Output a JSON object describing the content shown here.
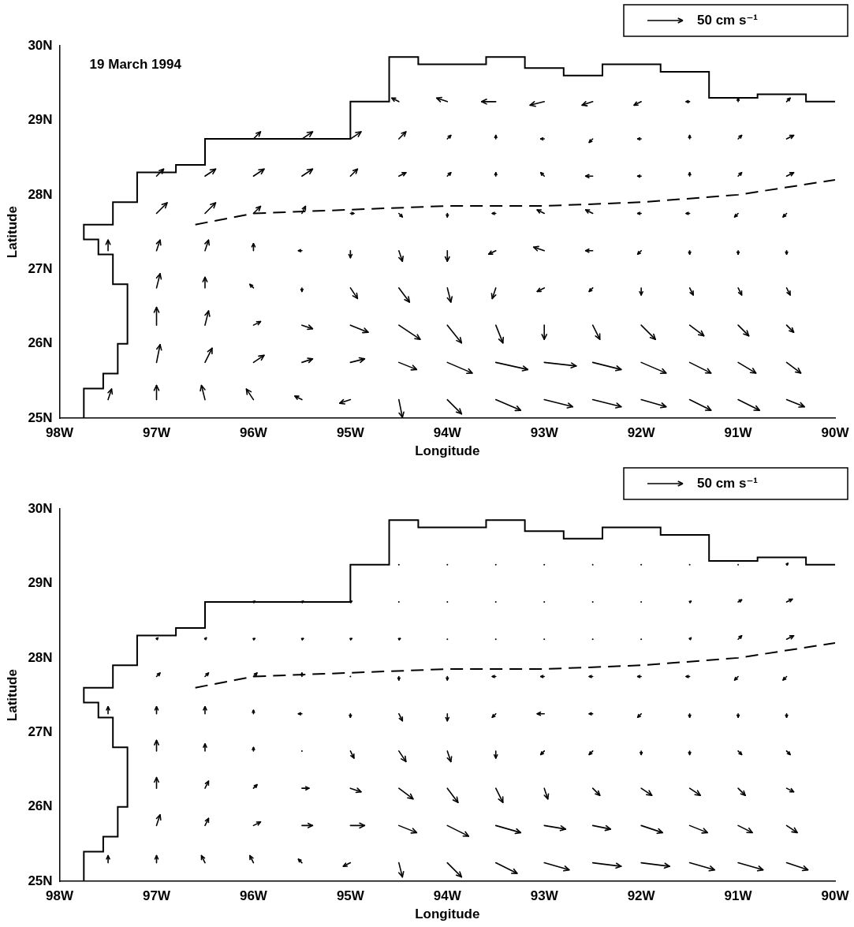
{
  "chart_data": [
    {
      "type": "quiver",
      "title": "19 March 1994",
      "x_label": "Longitude",
      "y_label": "Latitude",
      "xlim": [
        -98,
        -90
      ],
      "ylim": [
        25,
        30
      ],
      "xticks": [
        {
          "value": -98,
          "label": "98W"
        },
        {
          "value": -97,
          "label": "97W"
        },
        {
          "value": -96,
          "label": "96W"
        },
        {
          "value": -95,
          "label": "95W"
        },
        {
          "value": -94,
          "label": "94W"
        },
        {
          "value": -93,
          "label": "93W"
        },
        {
          "value": -92,
          "label": "92W"
        },
        {
          "value": -91,
          "label": "91W"
        },
        {
          "value": -90,
          "label": "90W"
        }
      ],
      "yticks": [
        {
          "value": 25,
          "label": "25N"
        },
        {
          "value": 26,
          "label": "26N"
        },
        {
          "value": 27,
          "label": "27N"
        },
        {
          "value": 28,
          "label": "28N"
        },
        {
          "value": 29,
          "label": "29N"
        },
        {
          "value": 30,
          "label": "30N"
        }
      ],
      "grid": false,
      "color": "#000000",
      "scale_arrow": {
        "value": 50,
        "label": "50 cm s⁻¹"
      },
      "series": [
        {
          "type": "line",
          "line_style": "solid",
          "color": "#000000",
          "x": [
            -97.75,
            -97.75,
            -97.55,
            -97.55,
            -97.4,
            -97.4,
            -97.3,
            -97.3,
            -97.45,
            -97.45,
            -97.6,
            -97.6,
            -97.75,
            -97.75,
            -97.45,
            -97.45,
            -97.2,
            -97.2,
            -96.8,
            -96.8,
            -96.5,
            -96.5,
            -95.0,
            -95.0,
            -94.6,
            -94.6,
            -94.3,
            -94.3,
            -93.6,
            -93.6,
            -93.2,
            -93.2,
            -92.8,
            -92.8,
            -92.4,
            -92.4,
            -91.8,
            -91.8,
            -91.3,
            -91.3,
            -90.8,
            -90.8,
            -90.3,
            -90.3,
            -90.0
          ],
          "values": [
            25.0,
            25.4,
            25.4,
            25.6,
            25.6,
            26.0,
            26.0,
            26.8,
            26.8,
            27.2,
            27.2,
            27.4,
            27.4,
            27.6,
            27.6,
            27.9,
            27.9,
            28.3,
            28.3,
            28.4,
            28.4,
            28.75,
            28.75,
            29.25,
            29.25,
            29.85,
            29.85,
            29.75,
            29.75,
            29.85,
            29.85,
            29.7,
            29.7,
            29.6,
            29.6,
            29.75,
            29.75,
            29.65,
            29.65,
            29.3,
            29.3,
            29.35,
            29.35,
            29.25,
            29.25
          ]
        },
        {
          "type": "line",
          "line_style": "dashed",
          "color": "#000000",
          "x": [
            -96.6,
            -96.0,
            -95.0,
            -94.0,
            -93.0,
            -92.0,
            -91.0,
            -90.0
          ],
          "values": [
            27.6,
            27.75,
            27.8,
            27.85,
            27.85,
            27.9,
            28.0,
            28.2
          ]
        }
      ],
      "vectors": {
        "x": [
          -97.5,
          -97.0,
          -96.5,
          -96.0,
          -95.5,
          -95.0,
          -94.5,
          -94.0,
          -93.5,
          -93.0,
          -92.5,
          -92.0,
          -91.5,
          -91.0,
          -90.5
        ],
        "y": [
          25.25,
          25.75,
          26.25,
          26.75,
          27.25,
          27.75,
          28.25,
          28.75,
          29.25
        ],
        "u": [
          [
            5,
            0,
            -5,
            -10,
            -10,
            -15,
            5,
            20,
            35,
            40,
            40,
            35,
            30,
            30,
            25
          ],
          [
            null,
            5,
            10,
            15,
            15,
            20,
            25,
            35,
            45,
            45,
            40,
            35,
            30,
            25,
            20
          ],
          [
            null,
            0,
            5,
            10,
            15,
            25,
            30,
            20,
            10,
            0,
            10,
            20,
            20,
            15,
            10
          ],
          [
            null,
            5,
            0,
            -5,
            0,
            10,
            15,
            5,
            -5,
            -10,
            -5,
            0,
            5,
            5,
            5
          ],
          [
            0,
            5,
            5,
            0,
            -5,
            0,
            5,
            0,
            -10,
            -15,
            -10,
            -5,
            0,
            0,
            0
          ],
          [
            null,
            15,
            15,
            10,
            5,
            5,
            5,
            0,
            -5,
            -10,
            -10,
            -5,
            -5,
            -5,
            -5
          ],
          [
            null,
            10,
            15,
            15,
            15,
            10,
            10,
            5,
            0,
            -5,
            -10,
            -5,
            0,
            5,
            10
          ],
          [
            null,
            null,
            null,
            10,
            15,
            15,
            10,
            5,
            0,
            -5,
            -5,
            -5,
            0,
            5,
            10
          ],
          [
            null,
            null,
            null,
            null,
            null,
            null,
            -10,
            -15,
            -20,
            -20,
            -15,
            -10,
            -5,
            0,
            5
          ]
        ],
        "v": [
          [
            15,
            20,
            20,
            15,
            5,
            -5,
            -25,
            -20,
            -15,
            -10,
            -10,
            -10,
            -15,
            -15,
            -10
          ],
          [
            null,
            25,
            20,
            10,
            5,
            5,
            -10,
            -15,
            -10,
            -5,
            -10,
            -15,
            -15,
            -15,
            -15
          ],
          [
            null,
            25,
            20,
            5,
            -5,
            -10,
            -20,
            -25,
            -25,
            -20,
            -20,
            -20,
            -15,
            -15,
            -10
          ],
          [
            null,
            20,
            15,
            5,
            -5,
            -15,
            -20,
            -20,
            -15,
            -5,
            -5,
            -10,
            -10,
            -10,
            -10
          ],
          [
            15,
            15,
            15,
            10,
            0,
            -10,
            -15,
            -15,
            -5,
            5,
            0,
            -5,
            -5,
            -5,
            -5
          ],
          [
            null,
            15,
            15,
            10,
            10,
            0,
            -5,
            -5,
            0,
            5,
            5,
            0,
            0,
            -5,
            -5
          ],
          [
            null,
            10,
            10,
            10,
            10,
            10,
            5,
            5,
            5,
            5,
            0,
            0,
            5,
            5,
            5
          ],
          [
            null,
            null,
            null,
            10,
            10,
            10,
            10,
            5,
            5,
            0,
            -5,
            0,
            5,
            5,
            5
          ],
          [
            null,
            null,
            null,
            null,
            null,
            null,
            5,
            5,
            0,
            -5,
            -5,
            -5,
            0,
            5,
            5
          ]
        ]
      }
    },
    {
      "type": "quiver",
      "x_label": "Longitude",
      "y_label": "Latitude",
      "xlim": [
        -98,
        -90
      ],
      "ylim": [
        25,
        30
      ],
      "xticks": [
        {
          "value": -98,
          "label": "98W"
        },
        {
          "value": -97,
          "label": "97W"
        },
        {
          "value": -96,
          "label": "96W"
        },
        {
          "value": -95,
          "label": "95W"
        },
        {
          "value": -94,
          "label": "94W"
        },
        {
          "value": -93,
          "label": "93W"
        },
        {
          "value": -92,
          "label": "92W"
        },
        {
          "value": -91,
          "label": "91W"
        },
        {
          "value": -90,
          "label": "90W"
        }
      ],
      "yticks": [
        {
          "value": 25,
          "label": "25N"
        },
        {
          "value": 26,
          "label": "26N"
        },
        {
          "value": 27,
          "label": "27N"
        },
        {
          "value": 28,
          "label": "28N"
        },
        {
          "value": 29,
          "label": "29N"
        },
        {
          "value": 30,
          "label": "30N"
        }
      ],
      "grid": false,
      "color": "#000000",
      "scale_arrow": {
        "value": 50,
        "label": "50 cm s⁻¹"
      },
      "series": [
        {
          "type": "line",
          "line_style": "solid",
          "color": "#000000",
          "x": [
            -97.75,
            -97.75,
            -97.55,
            -97.55,
            -97.4,
            -97.4,
            -97.3,
            -97.3,
            -97.45,
            -97.45,
            -97.6,
            -97.6,
            -97.75,
            -97.75,
            -97.45,
            -97.45,
            -97.2,
            -97.2,
            -96.8,
            -96.8,
            -96.5,
            -96.5,
            -95.0,
            -95.0,
            -94.6,
            -94.6,
            -94.3,
            -94.3,
            -93.6,
            -93.6,
            -93.2,
            -93.2,
            -92.8,
            -92.8,
            -92.4,
            -92.4,
            -91.8,
            -91.8,
            -91.3,
            -91.3,
            -90.8,
            -90.8,
            -90.3,
            -90.3,
            -90.0
          ],
          "values": [
            25.0,
            25.4,
            25.4,
            25.6,
            25.6,
            26.0,
            26.0,
            26.8,
            26.8,
            27.2,
            27.2,
            27.4,
            27.4,
            27.6,
            27.6,
            27.9,
            27.9,
            28.3,
            28.3,
            28.4,
            28.4,
            28.75,
            28.75,
            29.25,
            29.25,
            29.85,
            29.85,
            29.75,
            29.75,
            29.85,
            29.85,
            29.7,
            29.7,
            29.6,
            29.6,
            29.75,
            29.75,
            29.65,
            29.65,
            29.3,
            29.3,
            29.35,
            29.35,
            29.25,
            29.25
          ]
        },
        {
          "type": "line",
          "line_style": "dashed",
          "color": "#000000",
          "x": [
            -96.6,
            -96.0,
            -95.0,
            -94.0,
            -93.0,
            -92.0,
            -91.0,
            -90.0
          ],
          "values": [
            27.6,
            27.75,
            27.8,
            27.85,
            27.85,
            27.9,
            28.0,
            28.2
          ]
        }
      ],
      "vectors": {
        "x": [
          -97.5,
          -97.0,
          -96.5,
          -96.0,
          -95.5,
          -95.0,
          -94.5,
          -94.0,
          -93.5,
          -93.0,
          -92.5,
          -92.0,
          -91.5,
          -91.0,
          -90.5
        ],
        "y": [
          25.25,
          25.75,
          26.25,
          26.75,
          27.25,
          27.75,
          28.25,
          28.75,
          29.25
        ],
        "u": [
          [
            0,
            0,
            -5,
            -5,
            -5,
            -10,
            5,
            20,
            30,
            35,
            40,
            40,
            35,
            35,
            30
          ],
          [
            null,
            5,
            5,
            10,
            15,
            20,
            25,
            30,
            35,
            30,
            25,
            30,
            25,
            20,
            15
          ],
          [
            null,
            0,
            5,
            5,
            10,
            15,
            20,
            15,
            10,
            5,
            10,
            15,
            15,
            10,
            10
          ],
          [
            null,
            0,
            0,
            0,
            0,
            5,
            10,
            5,
            0,
            -5,
            -5,
            0,
            0,
            5,
            5
          ],
          [
            0,
            0,
            0,
            0,
            -5,
            0,
            5,
            0,
            -5,
            -10,
            -5,
            -5,
            0,
            0,
            0
          ],
          [
            null,
            5,
            5,
            5,
            0,
            0,
            0,
            0,
            -5,
            -5,
            -5,
            -5,
            -5,
            -5,
            -5
          ],
          [
            null,
            2,
            2,
            2,
            2,
            2,
            2,
            1,
            1,
            1,
            0,
            0,
            2,
            5,
            10
          ],
          [
            null,
            null,
            null,
            2,
            2,
            2,
            1,
            1,
            1,
            0,
            0,
            0,
            2,
            5,
            8
          ],
          [
            null,
            null,
            null,
            null,
            null,
            null,
            1,
            1,
            0,
            0,
            0,
            0,
            0,
            1,
            2
          ]
        ],
        "v": [
          [
            10,
            10,
            10,
            10,
            5,
            -5,
            -20,
            -20,
            -15,
            -10,
            -5,
            -5,
            -10,
            -10,
            -10
          ],
          [
            null,
            15,
            10,
            5,
            0,
            0,
            -10,
            -15,
            -10,
            -5,
            -5,
            -10,
            -10,
            -10,
            -10
          ],
          [
            null,
            15,
            10,
            5,
            0,
            -5,
            -15,
            -20,
            -20,
            -15,
            -10,
            -10,
            -10,
            -10,
            -5
          ],
          [
            null,
            15,
            10,
            5,
            0,
            -10,
            -15,
            -15,
            -10,
            -5,
            -5,
            -5,
            -5,
            -5,
            -5
          ],
          [
            10,
            10,
            10,
            5,
            0,
            -5,
            -10,
            -10,
            -5,
            0,
            0,
            -5,
            -5,
            -5,
            -5
          ],
          [
            null,
            5,
            5,
            5,
            5,
            0,
            -5,
            -5,
            0,
            0,
            0,
            0,
            0,
            -5,
            -5
          ],
          [
            null,
            2,
            2,
            1,
            1,
            1,
            1,
            1,
            0,
            0,
            0,
            0,
            2,
            5,
            5
          ],
          [
            null,
            null,
            null,
            1,
            1,
            1,
            1,
            0,
            0,
            0,
            0,
            0,
            1,
            3,
            4
          ],
          [
            null,
            null,
            null,
            null,
            null,
            null,
            0,
            0,
            0,
            0,
            0,
            0,
            0,
            1,
            2
          ]
        ]
      }
    }
  ]
}
